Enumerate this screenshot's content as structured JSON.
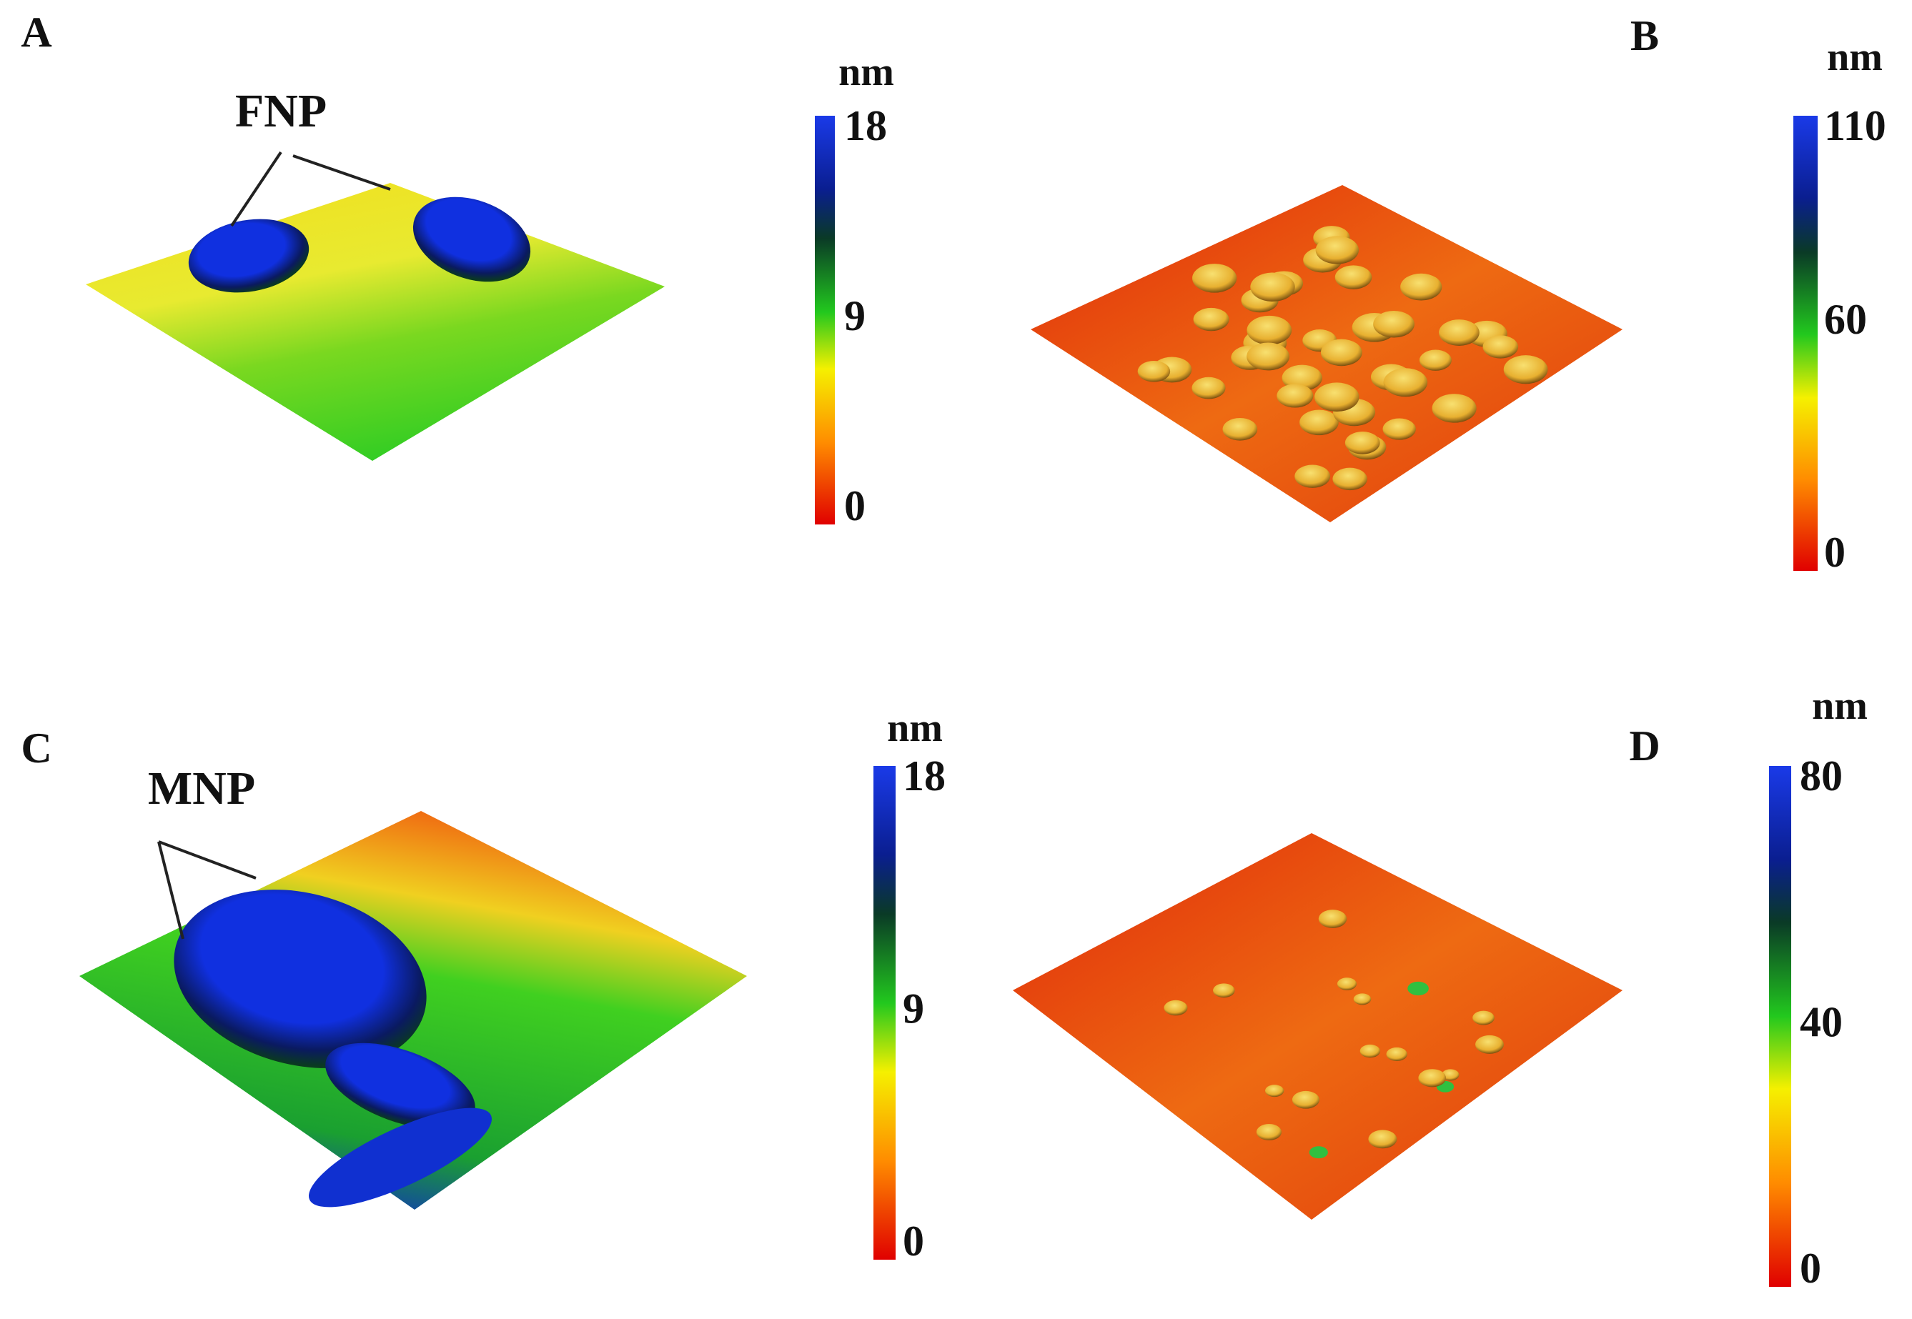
{
  "panels": [
    {
      "label": "A",
      "annotation": "FNP",
      "colorbar": {
        "unit": "nm",
        "ticks": [
          0,
          9,
          18
        ]
      }
    },
    {
      "label": "B",
      "colorbar": {
        "unit": "nm",
        "ticks": [
          0,
          60,
          110
        ]
      }
    },
    {
      "label": "C",
      "annotation": "MNP",
      "colorbar": {
        "unit": "nm",
        "ticks": [
          0,
          9,
          18
        ]
      }
    },
    {
      "label": "D",
      "colorbar": {
        "unit": "nm",
        "ticks": [
          0,
          40,
          80
        ]
      }
    }
  ]
}
